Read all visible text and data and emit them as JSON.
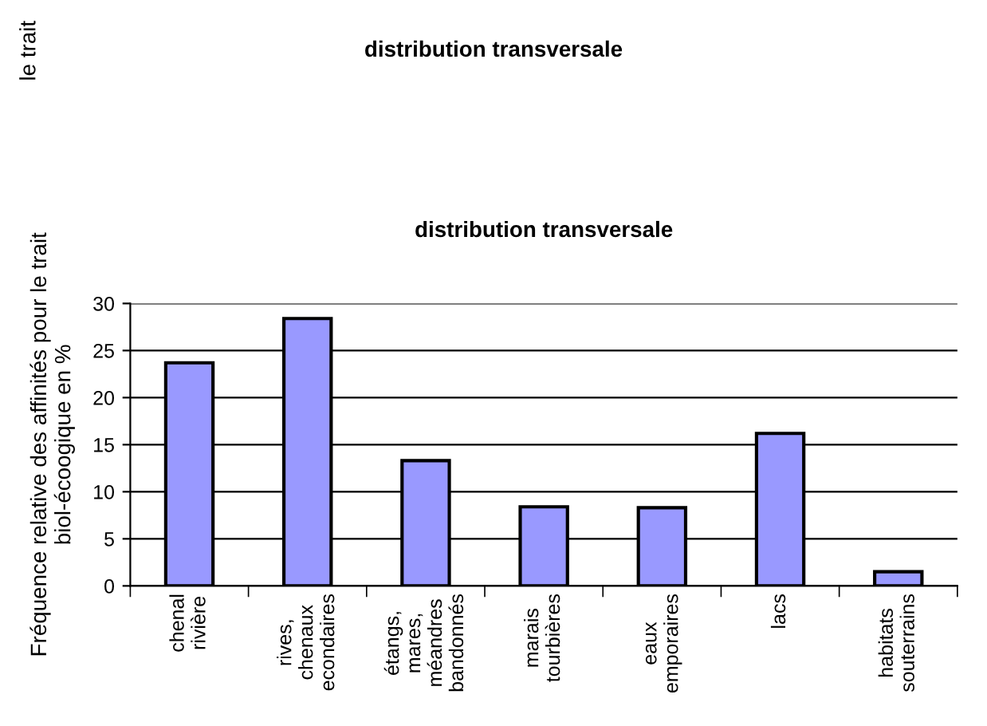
{
  "chart_data": {
    "type": "bar",
    "title": "distribution transversale",
    "ylabel": "Fréquence relative des affinités pour le trait\nbiol-écoogique en %",
    "annotations": [
      "le trait",
      "distribution transversale"
    ],
    "categories": [
      "chenal\nrivière",
      "rives,\nchenaux\necondaires",
      "étangs,\nmares,\nméandres\nbandonnés",
      "marais\ntourbières",
      "eaux\nemporaires",
      "lacs",
      "habitats\nsouterrains"
    ],
    "values": [
      23.7,
      28.4,
      13.3,
      8.4,
      8.3,
      16.2,
      1.5
    ],
    "color": "#9999ff",
    "ylim": [
      0,
      30
    ],
    "yticks": [
      0,
      5,
      10,
      15,
      20,
      25,
      30
    ],
    "grid": "y"
  }
}
